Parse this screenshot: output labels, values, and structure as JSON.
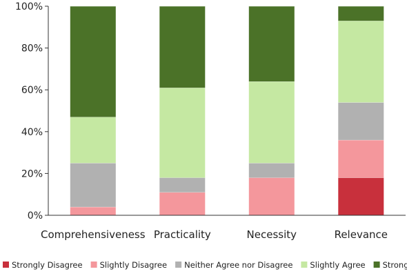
{
  "chart_data": {
    "type": "bar",
    "stacked": true,
    "categories": [
      "Comprehensiveness",
      "Practicality",
      "Necessity",
      "Relevance"
    ],
    "series": [
      {
        "name": "Strongly Disagree",
        "color": "#c8303c",
        "values": [
          0,
          0,
          0,
          18
        ]
      },
      {
        "name": "Slightly Disagree",
        "color": "#f4979c",
        "values": [
          4,
          11,
          18,
          18
        ]
      },
      {
        "name": "Neither Agree nor Disagree",
        "color": "#b1b1b1",
        "values": [
          21,
          7,
          7,
          18
        ]
      },
      {
        "name": "Slightly Agree",
        "color": "#c5e8a2",
        "values": [
          22,
          43,
          39,
          39
        ]
      },
      {
        "name": "Strongly Agree",
        "color": "#4b7228",
        "values": [
          53,
          39,
          36,
          7
        ]
      }
    ],
    "y_ticks": [
      "0%",
      "20%",
      "40%",
      "60%",
      "80%",
      "100%"
    ],
    "ylim": [
      0,
      100
    ],
    "y_unit": "%",
    "grid": false,
    "legend_position": "bottom"
  }
}
